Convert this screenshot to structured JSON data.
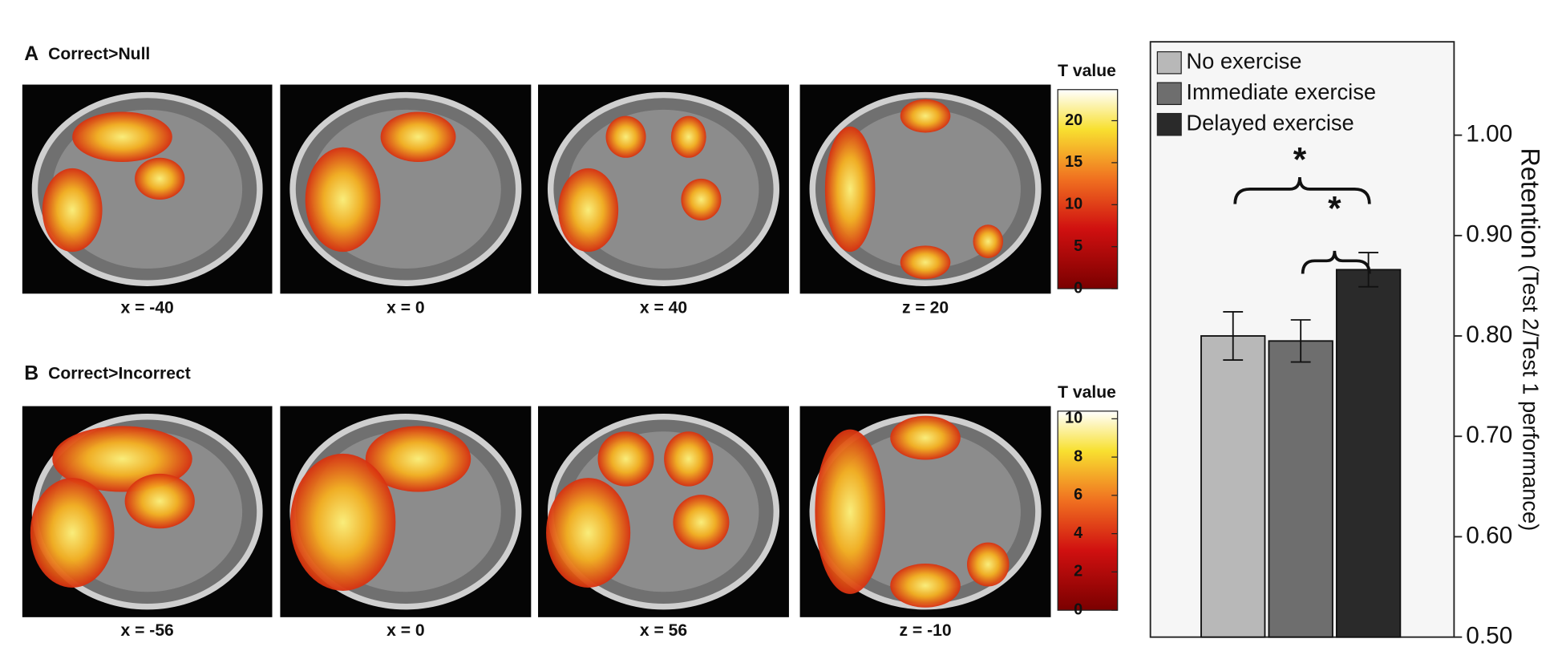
{
  "figure": {
    "panels": [
      {
        "letter": "A",
        "title": "Correct>Null",
        "slices": [
          "x = -40",
          "x = 0",
          "x = 40",
          "z = 20"
        ],
        "colorbar": {
          "title": "T value",
          "lim": [
            0,
            23.7
          ],
          "ticks": [
            0,
            5,
            10,
            15,
            20
          ]
        }
      },
      {
        "letter": "B",
        "title": "Correct>Incorrect",
        "slices": [
          "x = -56",
          "x = 0",
          "x = 56",
          "z = -10"
        ],
        "colorbar": {
          "title": "T value",
          "lim": [
            0,
            10.4
          ],
          "ticks": [
            0,
            2,
            4,
            6,
            8,
            10
          ]
        }
      }
    ]
  },
  "chart_data": {
    "type": "bar",
    "y_label": "Retention",
    "y_label_detail": "(Test 2/Test 1 performance)",
    "series": [
      {
        "name": "No exercise",
        "color": "#b8b8b8",
        "values": [
          0.8
        ],
        "errors": [
          0.024
        ]
      },
      {
        "name": "Immediate exercise",
        "color": "#6e6e6e",
        "values": [
          0.795
        ],
        "errors": [
          0.021
        ]
      },
      {
        "name": "Delayed exercise",
        "color": "#2a2a2a",
        "values": [
          0.866
        ],
        "errors": [
          0.017
        ]
      }
    ],
    "ylim": [
      0.5,
      1.093
    ],
    "yticks": [
      {
        "value": 0.5,
        "label": "0.50"
      },
      {
        "value": 0.6,
        "label": "0.60"
      },
      {
        "value": 0.7,
        "label": "0.70"
      },
      {
        "value": 0.8,
        "label": "0.80"
      },
      {
        "value": 0.9,
        "label": "0.90"
      },
      {
        "value": 1.0,
        "label": "1.00"
      }
    ],
    "annotations": [
      "*",
      "*"
    ],
    "legend": "upper left"
  }
}
